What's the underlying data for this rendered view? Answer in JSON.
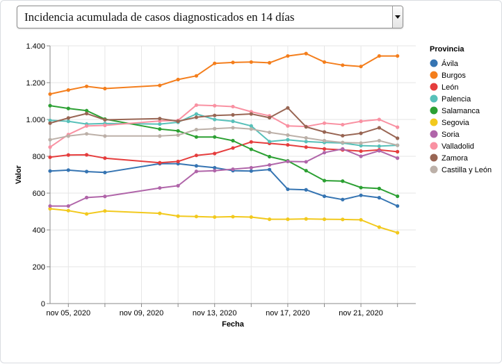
{
  "selector": {
    "selected": "Incidencia acumulada de casos diagnosticados en 14 días"
  },
  "chart_data": {
    "type": "line",
    "xlabel": "Fecha",
    "ylabel": "Valor",
    "ylim": [
      0,
      1400
    ],
    "yticks": [
      0,
      200,
      400,
      600,
      800,
      1000,
      1200,
      1400
    ],
    "ytick_labels": [
      "0",
      "200",
      "400",
      "600",
      "800",
      "1.000",
      "1.200",
      "1.400"
    ],
    "xticks": [
      "2020-11-05",
      "2020-11-09",
      "2020-11-13",
      "2020-11-17",
      "2020-11-21"
    ],
    "xtick_labels": [
      "nov 05, 2020",
      "nov 09, 2020",
      "nov 13, 2020",
      "nov 17, 2020",
      "nov 21, 2020"
    ],
    "grid": true,
    "legend_title": "Provincia",
    "legend_position": "right",
    "x": [
      "2020-11-04",
      "2020-11-05",
      "2020-11-06",
      "2020-11-07",
      "2020-11-08",
      "2020-11-10",
      "2020-11-11",
      "2020-11-12",
      "2020-11-13",
      "2020-11-14",
      "2020-11-15",
      "2020-11-16",
      "2020-11-17",
      "2020-11-18",
      "2020-11-19",
      "2020-11-20",
      "2020-11-21",
      "2020-11-22",
      "2020-11-23",
      "2020-11-24"
    ],
    "series": [
      {
        "name": "Ávila",
        "color": "#3574b2",
        "values": [
          720,
          725,
          717,
          712,
          null,
          760,
          760,
          748,
          738,
          722,
          720,
          728,
          621,
          618,
          583,
          565,
          588,
          575,
          530,
          null
        ]
      },
      {
        "name": "Burgos",
        "color": "#f47e1c",
        "values": [
          1138,
          1160,
          1180,
          1168,
          null,
          1185,
          1217,
          1237,
          1305,
          1310,
          1312,
          1308,
          1345,
          1358,
          1312,
          1295,
          1288,
          1345,
          1345,
          null
        ]
      },
      {
        "name": "León",
        "color": "#e53d3d",
        "values": [
          795,
          807,
          808,
          790,
          null,
          765,
          772,
          805,
          815,
          845,
          878,
          870,
          862,
          850,
          840,
          835,
          828,
          835,
          825,
          null
        ]
      },
      {
        "name": "Palencia",
        "color": "#57c0b9",
        "values": [
          995,
          990,
          975,
          978,
          null,
          975,
          985,
          1030,
          1000,
          990,
          965,
          880,
          890,
          880,
          875,
          872,
          858,
          855,
          860,
          null
        ]
      },
      {
        "name": "Salamanca",
        "color": "#2ca033",
        "values": [
          1075,
          1060,
          1048,
          1002,
          null,
          948,
          938,
          905,
          905,
          885,
          838,
          798,
          775,
          722,
          668,
          665,
          630,
          625,
          583,
          null
        ]
      },
      {
        "name": "Segovia",
        "color": "#f2c91d",
        "values": [
          515,
          505,
          487,
          503,
          null,
          490,
          475,
          473,
          470,
          472,
          470,
          458,
          458,
          460,
          458,
          457,
          455,
          415,
          385,
          null
        ]
      },
      {
        "name": "Soria",
        "color": "#b065a9",
        "values": [
          530,
          530,
          576,
          582,
          null,
          628,
          640,
          718,
          722,
          730,
          738,
          753,
          772,
          770,
          820,
          840,
          800,
          830,
          790,
          null
        ]
      },
      {
        "name": "Valladolid",
        "color": "#f991a2",
        "values": [
          850,
          918,
          965,
          968,
          null,
          992,
          995,
          1078,
          1075,
          1070,
          1042,
          1020,
          965,
          962,
          980,
          972,
          990,
          1000,
          958,
          null
        ]
      },
      {
        "name": "Zamora",
        "color": "#986553",
        "values": [
          980,
          1008,
          1032,
          998,
          null,
          1005,
          990,
          1012,
          1022,
          1025,
          1030,
          1010,
          1063,
          960,
          932,
          912,
          925,
          955,
          898,
          null
        ]
      },
      {
        "name": "Castilla y León",
        "color": "#bcb0a8",
        "values": [
          890,
          910,
          922,
          910,
          null,
          910,
          915,
          945,
          950,
          955,
          948,
          930,
          915,
          900,
          885,
          875,
          872,
          885,
          860,
          null
        ]
      }
    ]
  }
}
